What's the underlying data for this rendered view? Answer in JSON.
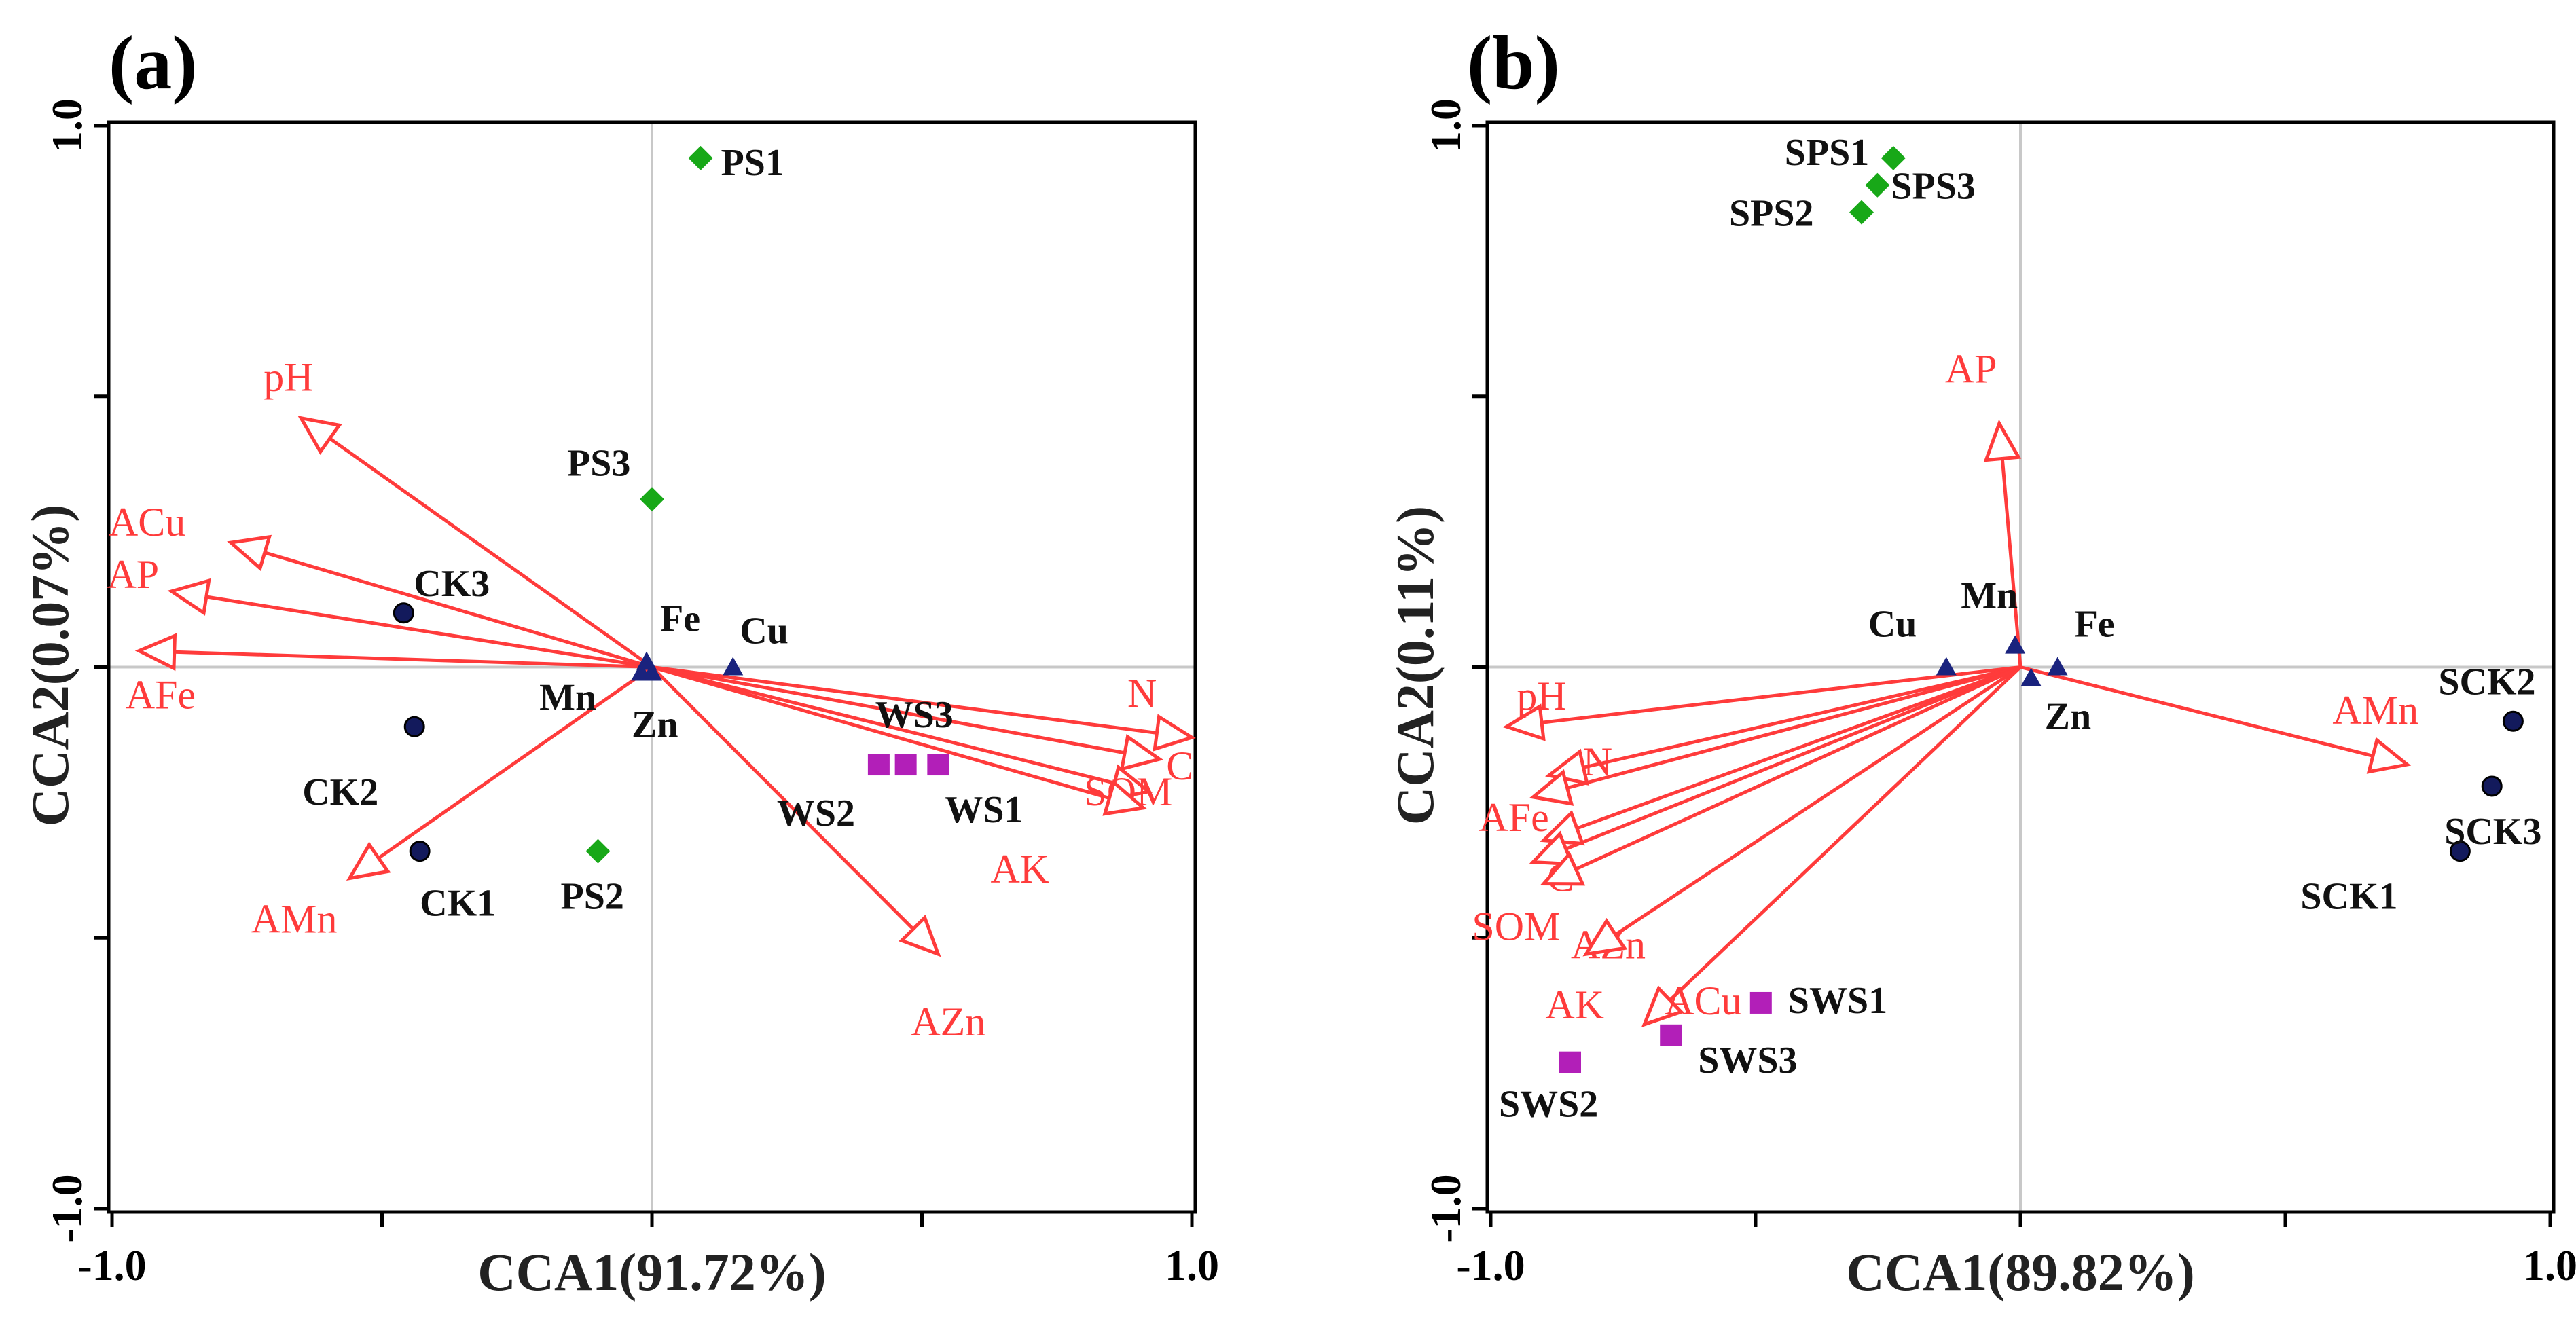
{
  "colors": {
    "arrow": "#ff3b3b",
    "ck": "#131a5c",
    "ps": "#18a818",
    "ws": "#b21fb8",
    "metal": "#1a237e",
    "grid": "#c8c8c8"
  },
  "chart_data": [
    {
      "type": "scatter",
      "panel_label": "(a)",
      "xlabel": "CCA1(91.72%)",
      "ylabel": "CCA2(0.07%)",
      "xlim": [
        -1.0,
        1.0
      ],
      "ylim": [
        -1.0,
        1.0
      ],
      "x_ticks": [
        -1.0,
        1.0
      ],
      "y_ticks": [
        -1.0,
        1.0
      ],
      "x_tick_labels": [
        "-1.0",
        "1.0"
      ],
      "y_tick_labels": [
        "-1.0",
        "1.0"
      ],
      "groups": [
        {
          "marker": "circle",
          "color_key": "ck",
          "points": [
            {
              "label": "CK1",
              "x": -0.43,
              "y": -0.34
            },
            {
              "label": "CK2",
              "x": -0.44,
              "y": -0.11
            },
            {
              "label": "CK3",
              "x": -0.46,
              "y": 0.1
            }
          ]
        },
        {
          "marker": "diamond",
          "color_key": "ps",
          "points": [
            {
              "label": "PS1",
              "x": 0.09,
              "y": 0.94
            },
            {
              "label": "PS2",
              "x": -0.1,
              "y": -0.34
            },
            {
              "label": "PS3",
              "x": 0.0,
              "y": 0.31
            }
          ]
        },
        {
          "marker": "square",
          "color_key": "ws",
          "points": [
            {
              "label": "WS1",
              "x": 0.53,
              "y": -0.18
            },
            {
              "label": "WS2",
              "x": 0.42,
              "y": -0.18
            },
            {
              "label": "WS3",
              "x": 0.47,
              "y": -0.18
            }
          ]
        },
        {
          "marker": "triangle",
          "color_key": "metal",
          "points": [
            {
              "label": "Fe",
              "x": -0.01,
              "y": 0.01
            },
            {
              "label": "Cu",
              "x": 0.15,
              "y": 0.0
            },
            {
              "label": "Mn",
              "x": -0.02,
              "y": -0.01
            },
            {
              "label": "Zn",
              "x": 0.0,
              "y": -0.01
            }
          ]
        }
      ],
      "vectors": [
        {
          "label": "pH",
          "x": -0.65,
          "y": 0.46
        },
        {
          "label": "ACu",
          "x": -0.78,
          "y": 0.23
        },
        {
          "label": "AP",
          "x": -0.89,
          "y": 0.14
        },
        {
          "label": "AFe",
          "x": -0.95,
          "y": 0.03
        },
        {
          "label": "AMn",
          "x": -0.56,
          "y": -0.39
        },
        {
          "label": "AZn",
          "x": 0.53,
          "y": -0.53
        },
        {
          "label": "N",
          "x": 1.0,
          "y": -0.13
        },
        {
          "label": "C",
          "x": 0.94,
          "y": -0.17
        },
        {
          "label": "SOM",
          "x": 0.92,
          "y": -0.23
        },
        {
          "label": "AK",
          "x": 0.91,
          "y": -0.26
        }
      ]
    },
    {
      "type": "scatter",
      "panel_label": "(b)",
      "xlabel": "CCA1(89.82%)",
      "ylabel": "CCA2(0.11%)",
      "xlim": [
        -1.0,
        1.0
      ],
      "ylim": [
        -1.0,
        1.0
      ],
      "x_ticks": [
        -1.0,
        1.0
      ],
      "y_ticks": [
        -1.0,
        1.0
      ],
      "x_tick_labels": [
        "-1.0",
        "1.0"
      ],
      "y_tick_labels": [
        "-1.0",
        "1.0"
      ],
      "groups": [
        {
          "marker": "circle",
          "color_key": "ck",
          "points": [
            {
              "label": "SCK1",
              "x": 0.83,
              "y": -0.34
            },
            {
              "label": "SCK2",
              "x": 0.93,
              "y": -0.1
            },
            {
              "label": "SCK3",
              "x": 0.89,
              "y": -0.22
            }
          ]
        },
        {
          "marker": "diamond",
          "color_key": "ps",
          "points": [
            {
              "label": "SPS1",
              "x": -0.24,
              "y": 0.94
            },
            {
              "label": "SPS2",
              "x": -0.3,
              "y": 0.84
            },
            {
              "label": "SPS3",
              "x": -0.27,
              "y": 0.89
            }
          ]
        },
        {
          "marker": "square",
          "color_key": "ws",
          "points": [
            {
              "label": "SWS1",
              "x": -0.49,
              "y": -0.62
            },
            {
              "label": "SWS2",
              "x": -0.85,
              "y": -0.73
            },
            {
              "label": "SWS3",
              "x": -0.66,
              "y": -0.68
            }
          ]
        },
        {
          "marker": "triangle",
          "color_key": "metal",
          "points": [
            {
              "label": "Cu",
              "x": -0.14,
              "y": 0.0
            },
            {
              "label": "Mn",
              "x": -0.01,
              "y": 0.04
            },
            {
              "label": "Fe",
              "x": 0.07,
              "y": 0.0
            },
            {
              "label": "Zn",
              "x": 0.02,
              "y": -0.02
            }
          ]
        }
      ],
      "vectors": [
        {
          "label": "AP",
          "x": -0.04,
          "y": 0.45
        },
        {
          "label": "pH",
          "x": -0.97,
          "y": -0.11
        },
        {
          "label": "N",
          "x": -0.89,
          "y": -0.2
        },
        {
          "label": "AFe",
          "x": -0.92,
          "y": -0.24
        },
        {
          "label": "C",
          "x": -0.9,
          "y": -0.32
        },
        {
          "label": "SOM",
          "x": -0.92,
          "y": -0.36
        },
        {
          "label": "AZn",
          "x": -0.9,
          "y": -0.4
        },
        {
          "label": "AK",
          "x": -0.82,
          "y": -0.53
        },
        {
          "label": "ACu",
          "x": -0.71,
          "y": -0.66
        },
        {
          "label": "AMn",
          "x": 0.73,
          "y": -0.18
        }
      ]
    }
  ]
}
